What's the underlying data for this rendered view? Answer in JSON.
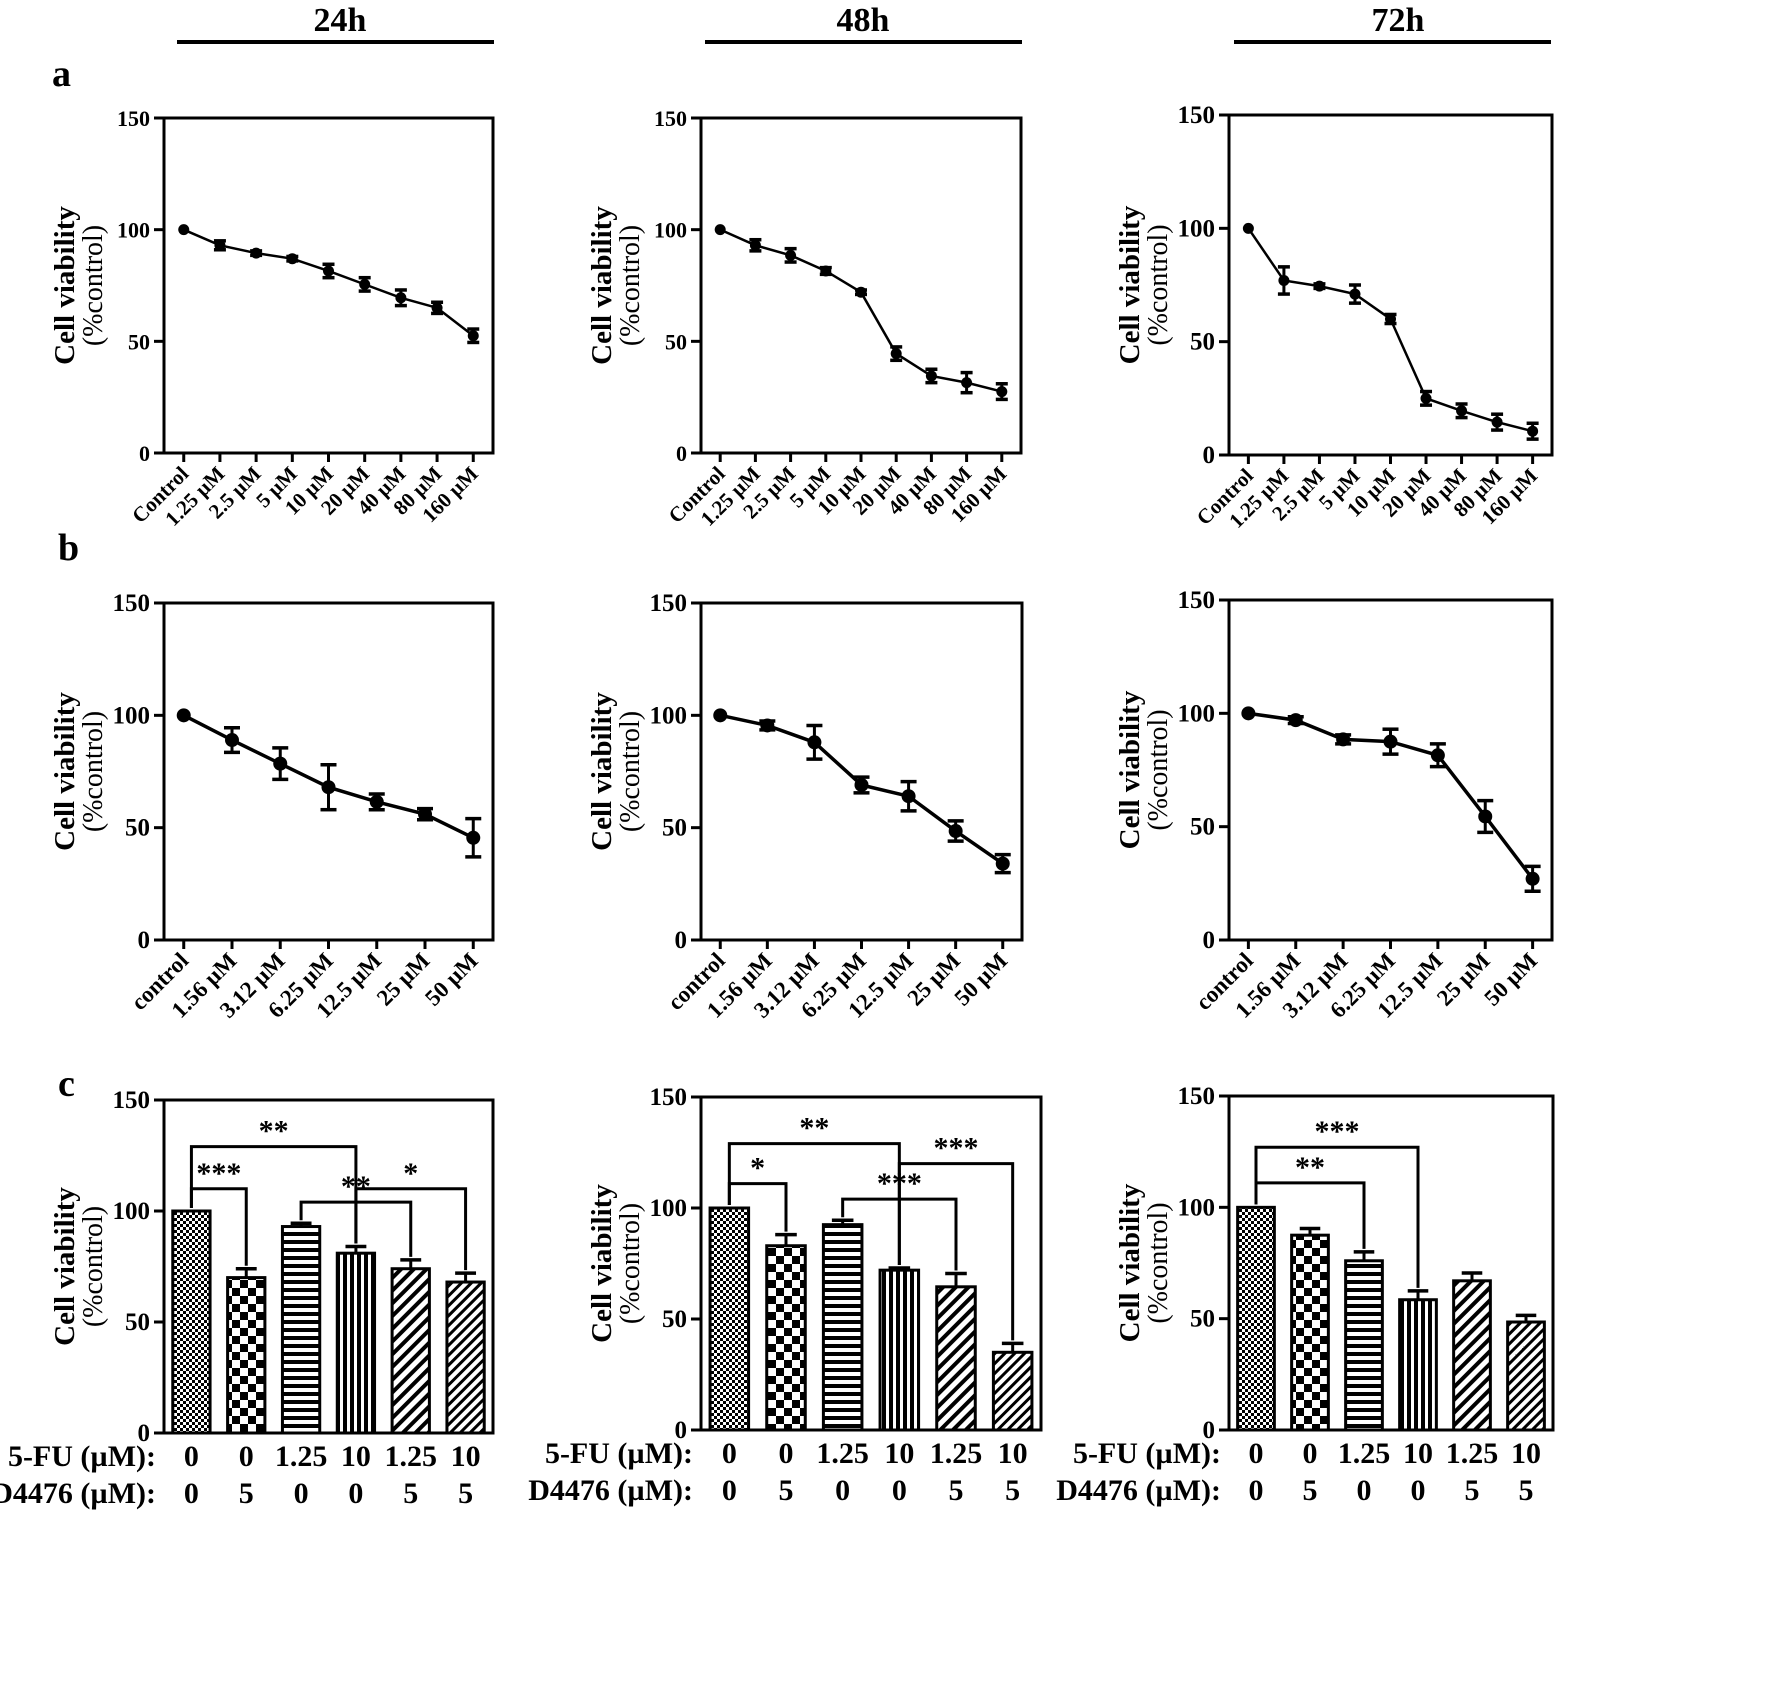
{
  "headers": [
    "24h",
    "48h",
    "72h"
  ],
  "panel_labels": [
    "a",
    "b",
    "c"
  ],
  "axis": {
    "ylabel_bold": "Cell viability",
    "ylabel_sub": "(%control)",
    "yticks": [
      "0",
      "50",
      "100",
      "150"
    ]
  },
  "row_c_labels": {
    "fu_label": "5-FU (µM):",
    "d_label": "D4476 (µM):"
  },
  "chart_data": [
    {
      "type": "line",
      "panel": "a",
      "time": "24h",
      "ylim": [
        0,
        150
      ],
      "categories": [
        "Control",
        "1.25 µM",
        "2.5 µM",
        "5 µM",
        "10 µM",
        "20 µM",
        "40 µM",
        "80 µM",
        "160 µM"
      ],
      "values": [
        100,
        93,
        89.5,
        87,
        81.5,
        75.5,
        69.5,
        65,
        52.5
      ],
      "errors": [
        0,
        2,
        1,
        1,
        3,
        3,
        3.5,
        2.5,
        3
      ]
    },
    {
      "type": "line",
      "panel": "a",
      "time": "48h",
      "ylim": [
        0,
        150
      ],
      "categories": [
        "Control",
        "1.25 µM",
        "2.5 µM",
        "5 µM",
        "10 µM",
        "20 µM",
        "40 µM",
        "80 µM",
        "160 µM"
      ],
      "values": [
        100,
        93,
        88.5,
        81.5,
        72,
        44.5,
        34.5,
        31.5,
        27.5
      ],
      "errors": [
        0,
        2.5,
        3,
        1.5,
        1,
        3,
        3,
        4.5,
        3.5
      ]
    },
    {
      "type": "line",
      "panel": "a",
      "time": "72h",
      "ylim": [
        0,
        150
      ],
      "categories": [
        "Control",
        "1.25 µM",
        "2.5 µM",
        "5 µM",
        "10 µM",
        "20 µM",
        "40 µM",
        "80 µM",
        "160 µM"
      ],
      "values": [
        100,
        77,
        74.5,
        71,
        60,
        25,
        19.5,
        14.5,
        10.5
      ],
      "errors": [
        0,
        6,
        1,
        4,
        2,
        3,
        3,
        3.5,
        3.5
      ]
    },
    {
      "type": "line",
      "panel": "b",
      "time": "24h",
      "ylim": [
        0,
        150
      ],
      "categories": [
        "control",
        "1.56 µM",
        "3.12 µM",
        "6.25 µM",
        "12.5 µM",
        "25 µM",
        "50 µM"
      ],
      "values": [
        100,
        89,
        78.5,
        68,
        61.5,
        56,
        45.5
      ],
      "errors": [
        0,
        5.5,
        7,
        10,
        3.5,
        2.5,
        8.5
      ]
    },
    {
      "type": "line",
      "panel": "b",
      "time": "48h",
      "ylim": [
        0,
        150
      ],
      "categories": [
        "control",
        "1.56 µM",
        "3.12 µM",
        "6.25 µM",
        "12.5 µM",
        "25 µM",
        "50 µM"
      ],
      "values": [
        100,
        95.5,
        88,
        69,
        64,
        48.5,
        34
      ],
      "errors": [
        0,
        2,
        7.5,
        3.5,
        6.5,
        4.5,
        4
      ]
    },
    {
      "type": "line",
      "panel": "b",
      "time": "72h",
      "ylim": [
        0,
        150
      ],
      "categories": [
        "control",
        "1.56 µM",
        "3.12 µM",
        "6.25 µM",
        "12.5 µM",
        "25 µM",
        "50 µM"
      ],
      "values": [
        100,
        97,
        88.5,
        87.5,
        81.5,
        54.5,
        27
      ],
      "errors": [
        0,
        1.5,
        2,
        5.5,
        5,
        7,
        5.5
      ]
    },
    {
      "type": "bar",
      "panel": "c",
      "time": "24h",
      "ylim": [
        0,
        150
      ],
      "fu": [
        "0",
        "0",
        "1.25",
        "10",
        "1.25",
        "10"
      ],
      "d4476": [
        "0",
        "5",
        "0",
        "0",
        "5",
        "5"
      ],
      "values": [
        100,
        70,
        93,
        81,
        74,
        68
      ],
      "errors": [
        0,
        4,
        1.5,
        3,
        4,
        4
      ],
      "patterns": [
        "dots",
        "checker",
        "hlines",
        "vlines",
        "diag",
        "diag-dense"
      ],
      "significance": [
        {
          "from": 1,
          "to": 2,
          "label": "***",
          "level": 110
        },
        {
          "from": 1,
          "to": 4,
          "label": "**",
          "level": 129
        },
        {
          "from": 3,
          "to": 5,
          "label": "**",
          "level": 104
        },
        {
          "from": 4,
          "to": 6,
          "label": "*",
          "level": 110
        }
      ]
    },
    {
      "type": "bar",
      "panel": "c",
      "time": "48h",
      "ylim": [
        0,
        150
      ],
      "fu": [
        "0",
        "0",
        "1.25",
        "10",
        "1.25",
        "10"
      ],
      "d4476": [
        "0",
        "5",
        "0",
        "0",
        "5",
        "5"
      ],
      "values": [
        100,
        83,
        92.5,
        72,
        64.5,
        35
      ],
      "errors": [
        0,
        5,
        2,
        1,
        6,
        4
      ],
      "patterns": [
        "dots",
        "checker",
        "hlines",
        "vlines",
        "diag",
        "diag-dense"
      ],
      "significance": [
        {
          "from": 1,
          "to": 2,
          "label": "*",
          "level": 111
        },
        {
          "from": 1,
          "to": 4,
          "label": "**",
          "level": 129
        },
        {
          "from": 3,
          "to": 5,
          "label": "***",
          "level": 104
        },
        {
          "from": 4,
          "to": 6,
          "label": "***",
          "level": 120
        }
      ]
    },
    {
      "type": "bar",
      "panel": "c",
      "time": "72h",
      "ylim": [
        0,
        150
      ],
      "fu": [
        "0",
        "0",
        "1.25",
        "10",
        "1.25",
        "10"
      ],
      "d4476": [
        "0",
        "5",
        "0",
        "0",
        "5",
        "5"
      ],
      "values": [
        100,
        87.5,
        76,
        58.5,
        67,
        48.5
      ],
      "errors": [
        0,
        3,
        4,
        4,
        3.5,
        3
      ],
      "patterns": [
        "dots",
        "checker",
        "hlines",
        "vlines",
        "diag",
        "diag-dense"
      ],
      "significance": [
        {
          "from": 1,
          "to": 3,
          "label": "**",
          "level": 111
        },
        {
          "from": 1,
          "to": 4,
          "label": "***",
          "level": 127
        }
      ]
    }
  ]
}
